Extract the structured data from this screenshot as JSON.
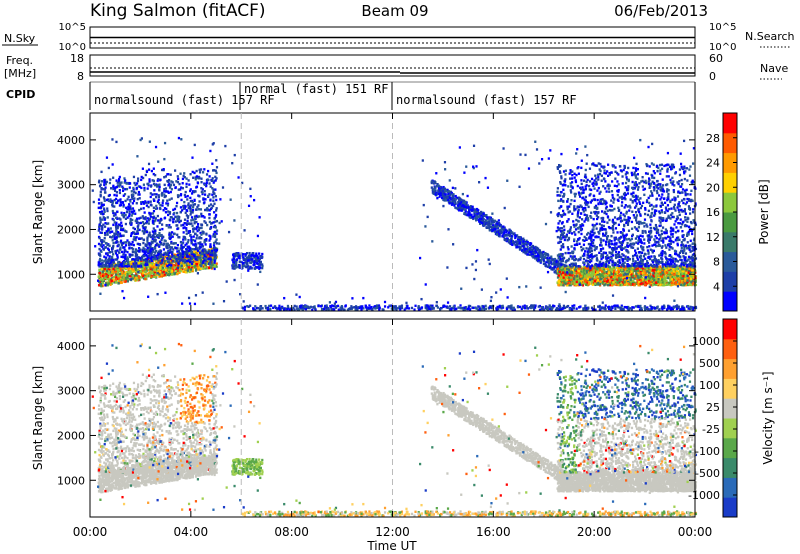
{
  "header": {
    "station": "King Salmon (fitACF)",
    "beam": "Beam 09",
    "date": "06/Feb/2013"
  },
  "status_rows": {
    "nsky": {
      "label": "N.Sky",
      "ticks": [
        "10^5",
        "10^0"
      ]
    },
    "nsearch": {
      "label": "N.Search",
      "ticks": [
        "10^5",
        "10^0"
      ]
    },
    "freq": {
      "label": "Freq.",
      "unit": "[MHz]",
      "ticks": [
        "18",
        "8"
      ]
    },
    "nave": {
      "label": "Nave",
      "ticks": [
        "60",
        "0"
      ]
    },
    "cpid": {
      "label": "CPID",
      "segments": [
        {
          "text": "normalsound (fast) 157 RF",
          "start_h": 0,
          "end_h": 6.0
        },
        {
          "text": "normal (fast) 151 RF",
          "start_h": 6.0,
          "end_h": 12.0
        },
        {
          "text": "normalsound (fast) 157 RF",
          "start_h": 12.0,
          "end_h": 24.0
        }
      ]
    }
  },
  "x_axis": {
    "label": "Time UT",
    "tick_labels": [
      "00:00",
      "04:00",
      "08:00",
      "12:00",
      "16:00",
      "20:00",
      "00:00"
    ],
    "range_h": [
      0,
      24
    ],
    "dashed_markers_h": [
      6.0,
      12.0
    ]
  },
  "chart_data": [
    {
      "type": "heatmap",
      "name": "power",
      "ylabel": "Slant Range [km]",
      "ylim": [
        180,
        4600
      ],
      "yticks": [
        1000,
        2000,
        3000,
        4000
      ],
      "colorbar": {
        "label": "Power [dB]",
        "tick_labels": [
          "28",
          "24",
          "20",
          "16",
          "12",
          "8",
          "4"
        ],
        "colors": [
          "#0000ff",
          "#1e3fa8",
          "#2a5a9a",
          "#3a7a6a",
          "#4a9a40",
          "#8cc83c",
          "#ffd000",
          "#ff9a00",
          "#ff5a00",
          "#ff0000"
        ]
      },
      "regions": [
        {
          "desc": "morning band",
          "t0": 0.3,
          "t1": 5.0,
          "r0": 700,
          "r1": 1200,
          "level": "high"
        },
        {
          "desc": "morning upper",
          "t0": 0.3,
          "t1": 5.0,
          "r0": 1200,
          "r1": 3200,
          "level": "low"
        },
        {
          "desc": "patch",
          "t0": 5.6,
          "t1": 6.8,
          "r0": 1100,
          "r1": 1500,
          "level": "low"
        },
        {
          "desc": "evening arc",
          "t0": 13.5,
          "t1": 19.0,
          "r0": 900,
          "r1": 3000,
          "level": "low"
        },
        {
          "desc": "evening band",
          "t0": 18.5,
          "t1": 24.0,
          "r0": 700,
          "r1": 1200,
          "level": "high"
        },
        {
          "desc": "evening upper",
          "t0": 18.5,
          "t1": 24.0,
          "r0": 1200,
          "r1": 3400,
          "level": "low"
        }
      ]
    },
    {
      "type": "heatmap",
      "name": "velocity",
      "ylabel": "Slant Range [km]",
      "ylim": [
        180,
        4600
      ],
      "yticks": [
        1000,
        2000,
        3000,
        4000
      ],
      "colorbar": {
        "label": "Velocity [m s⁻¹]",
        "tick_labels": [
          "1000",
          "500",
          "100",
          "25",
          "-25",
          "-100",
          "-500",
          "-1000"
        ],
        "colors": [
          "#1a3cc8",
          "#2a6ab8",
          "#3a8a6a",
          "#5aa84a",
          "#a0d050",
          "#c8c8c0",
          "#ffd060",
          "#ffa030",
          "#ff6010",
          "#ff0000"
        ]
      }
    }
  ]
}
